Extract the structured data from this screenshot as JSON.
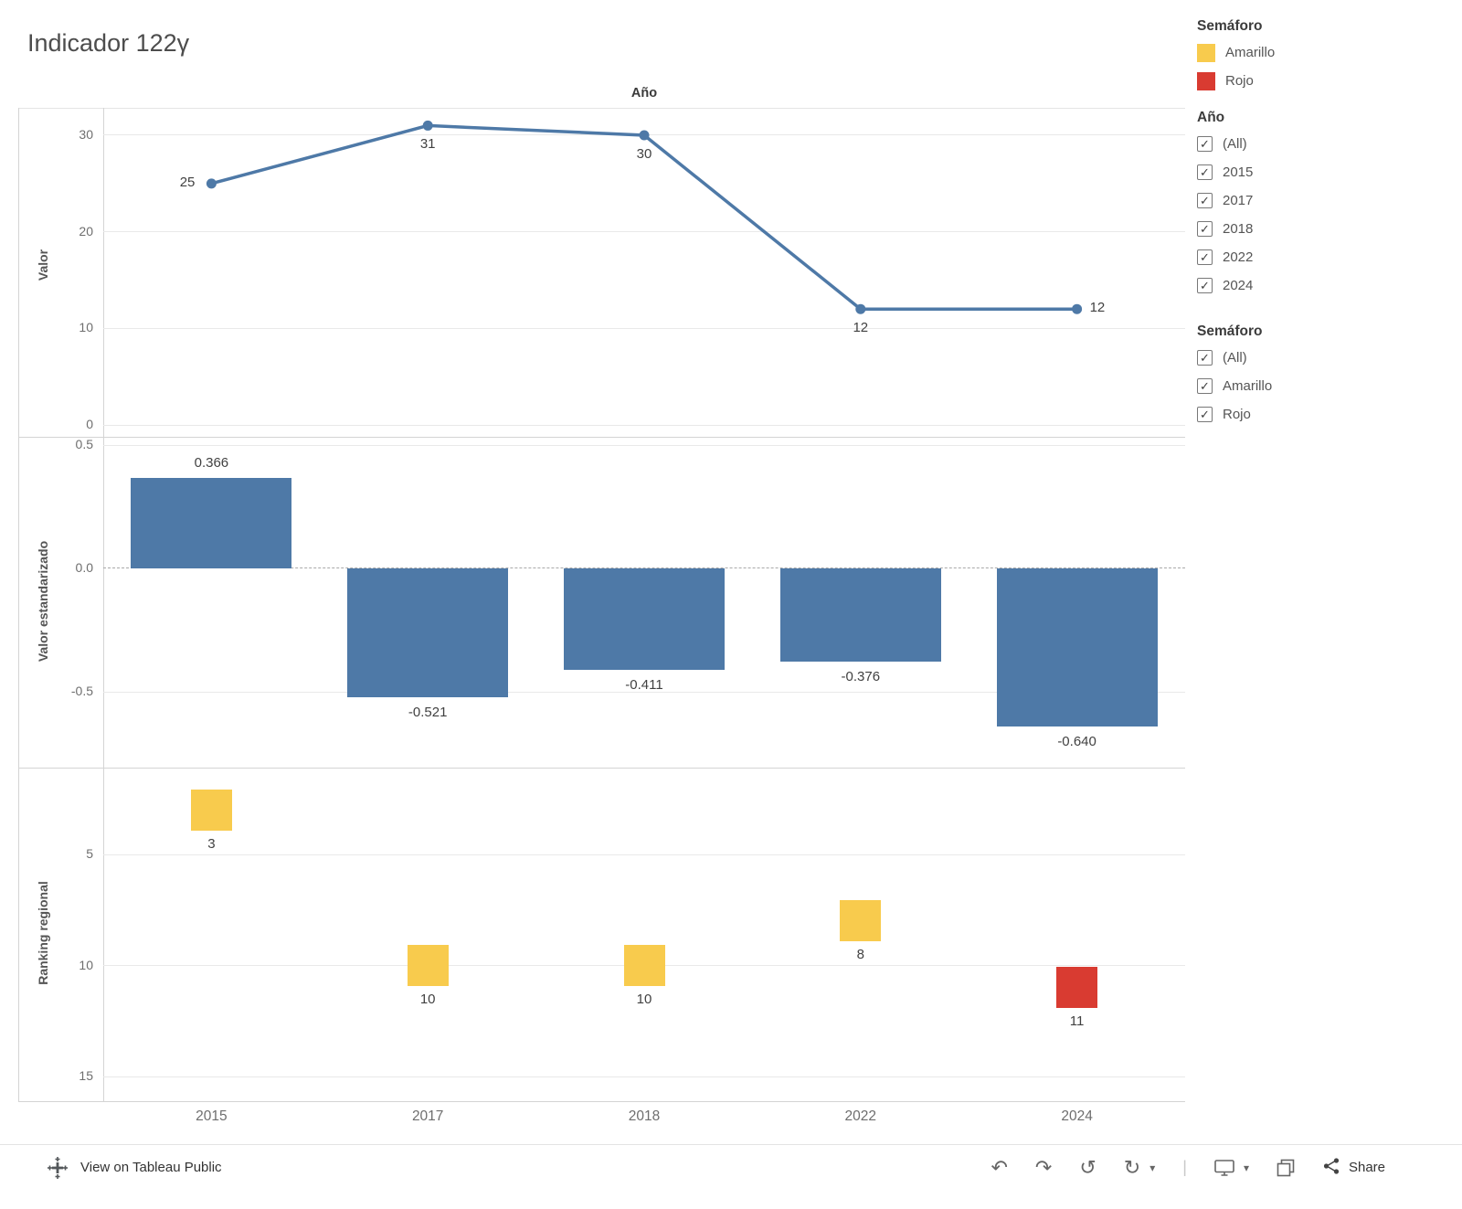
{
  "title": "Indicador 122γ",
  "x_axis_labels": [
    "2015",
    "2017",
    "2018",
    "2022",
    "2024"
  ],
  "chart_data": [
    {
      "type": "line",
      "title": "Año",
      "ylabel": "Valor",
      "x": [
        "2015",
        "2017",
        "2018",
        "2022",
        "2024"
      ],
      "values": [
        25,
        31,
        30,
        12,
        12
      ],
      "labels": [
        "25",
        "31",
        "30",
        "12",
        "12"
      ],
      "ylim": [
        0,
        32
      ],
      "yticks": [
        30,
        20,
        10,
        0
      ],
      "ytick_labels": [
        "30",
        "20",
        "10",
        "0"
      ],
      "grid": true,
      "legend_position": "none",
      "color": "#4e79a7"
    },
    {
      "type": "bar",
      "ylabel": "Valor estandarizado",
      "x": [
        "2015",
        "2017",
        "2018",
        "2022",
        "2024"
      ],
      "values": [
        0.366,
        -0.521,
        -0.411,
        -0.376,
        -0.64
      ],
      "labels": [
        "0.366",
        "-0.521",
        "-0.411",
        "-0.376",
        "-0.640"
      ],
      "ylim": [
        -0.75,
        0.55
      ],
      "yticks": [
        0.5,
        0,
        -0.5
      ],
      "ytick_labels": [
        "0.5",
        "0.0",
        "-0.5"
      ],
      "zero_line": "dashed",
      "color": "#4e79a7"
    },
    {
      "type": "scatter",
      "marker": "square",
      "ylabel": "Ranking regional",
      "x": [
        "2015",
        "2017",
        "2018",
        "2022",
        "2024"
      ],
      "values": [
        3,
        10,
        10,
        8,
        11
      ],
      "labels": [
        "3",
        "10",
        "10",
        "8",
        "11"
      ],
      "color_by": "Semáforo",
      "point_categories": [
        "Amarillo",
        "Amarillo",
        "Amarillo",
        "Amarillo",
        "Rojo"
      ],
      "colors": [
        "#f8cb4d",
        "#f8cb4d",
        "#f8cb4d",
        "#f8cb4d",
        "#d93b31"
      ],
      "y_inverted": true,
      "ylim": [
        0.5,
        16.5
      ],
      "yticks": [
        5,
        10,
        15
      ],
      "ytick_labels": [
        "5",
        "10",
        "15"
      ]
    }
  ],
  "legend": {
    "title": "Semáforo",
    "items": [
      {
        "label": "Amarillo",
        "color": "#f8cb4d"
      },
      {
        "label": "Rojo",
        "color": "#d93b31"
      }
    ]
  },
  "filters": [
    {
      "title": "Año",
      "options": [
        {
          "label": "(All)",
          "checked": true
        },
        {
          "label": "2015",
          "checked": true
        },
        {
          "label": "2017",
          "checked": true
        },
        {
          "label": "2018",
          "checked": true
        },
        {
          "label": "2022",
          "checked": true
        },
        {
          "label": "2024",
          "checked": true
        }
      ]
    },
    {
      "title": "Semáforo",
      "options": [
        {
          "label": "(All)",
          "checked": true
        },
        {
          "label": "Amarillo",
          "checked": true
        },
        {
          "label": "Rojo",
          "checked": true
        }
      ]
    }
  ],
  "toolbar": {
    "view_on": "View on Tableau Public",
    "share_label": "Share"
  }
}
